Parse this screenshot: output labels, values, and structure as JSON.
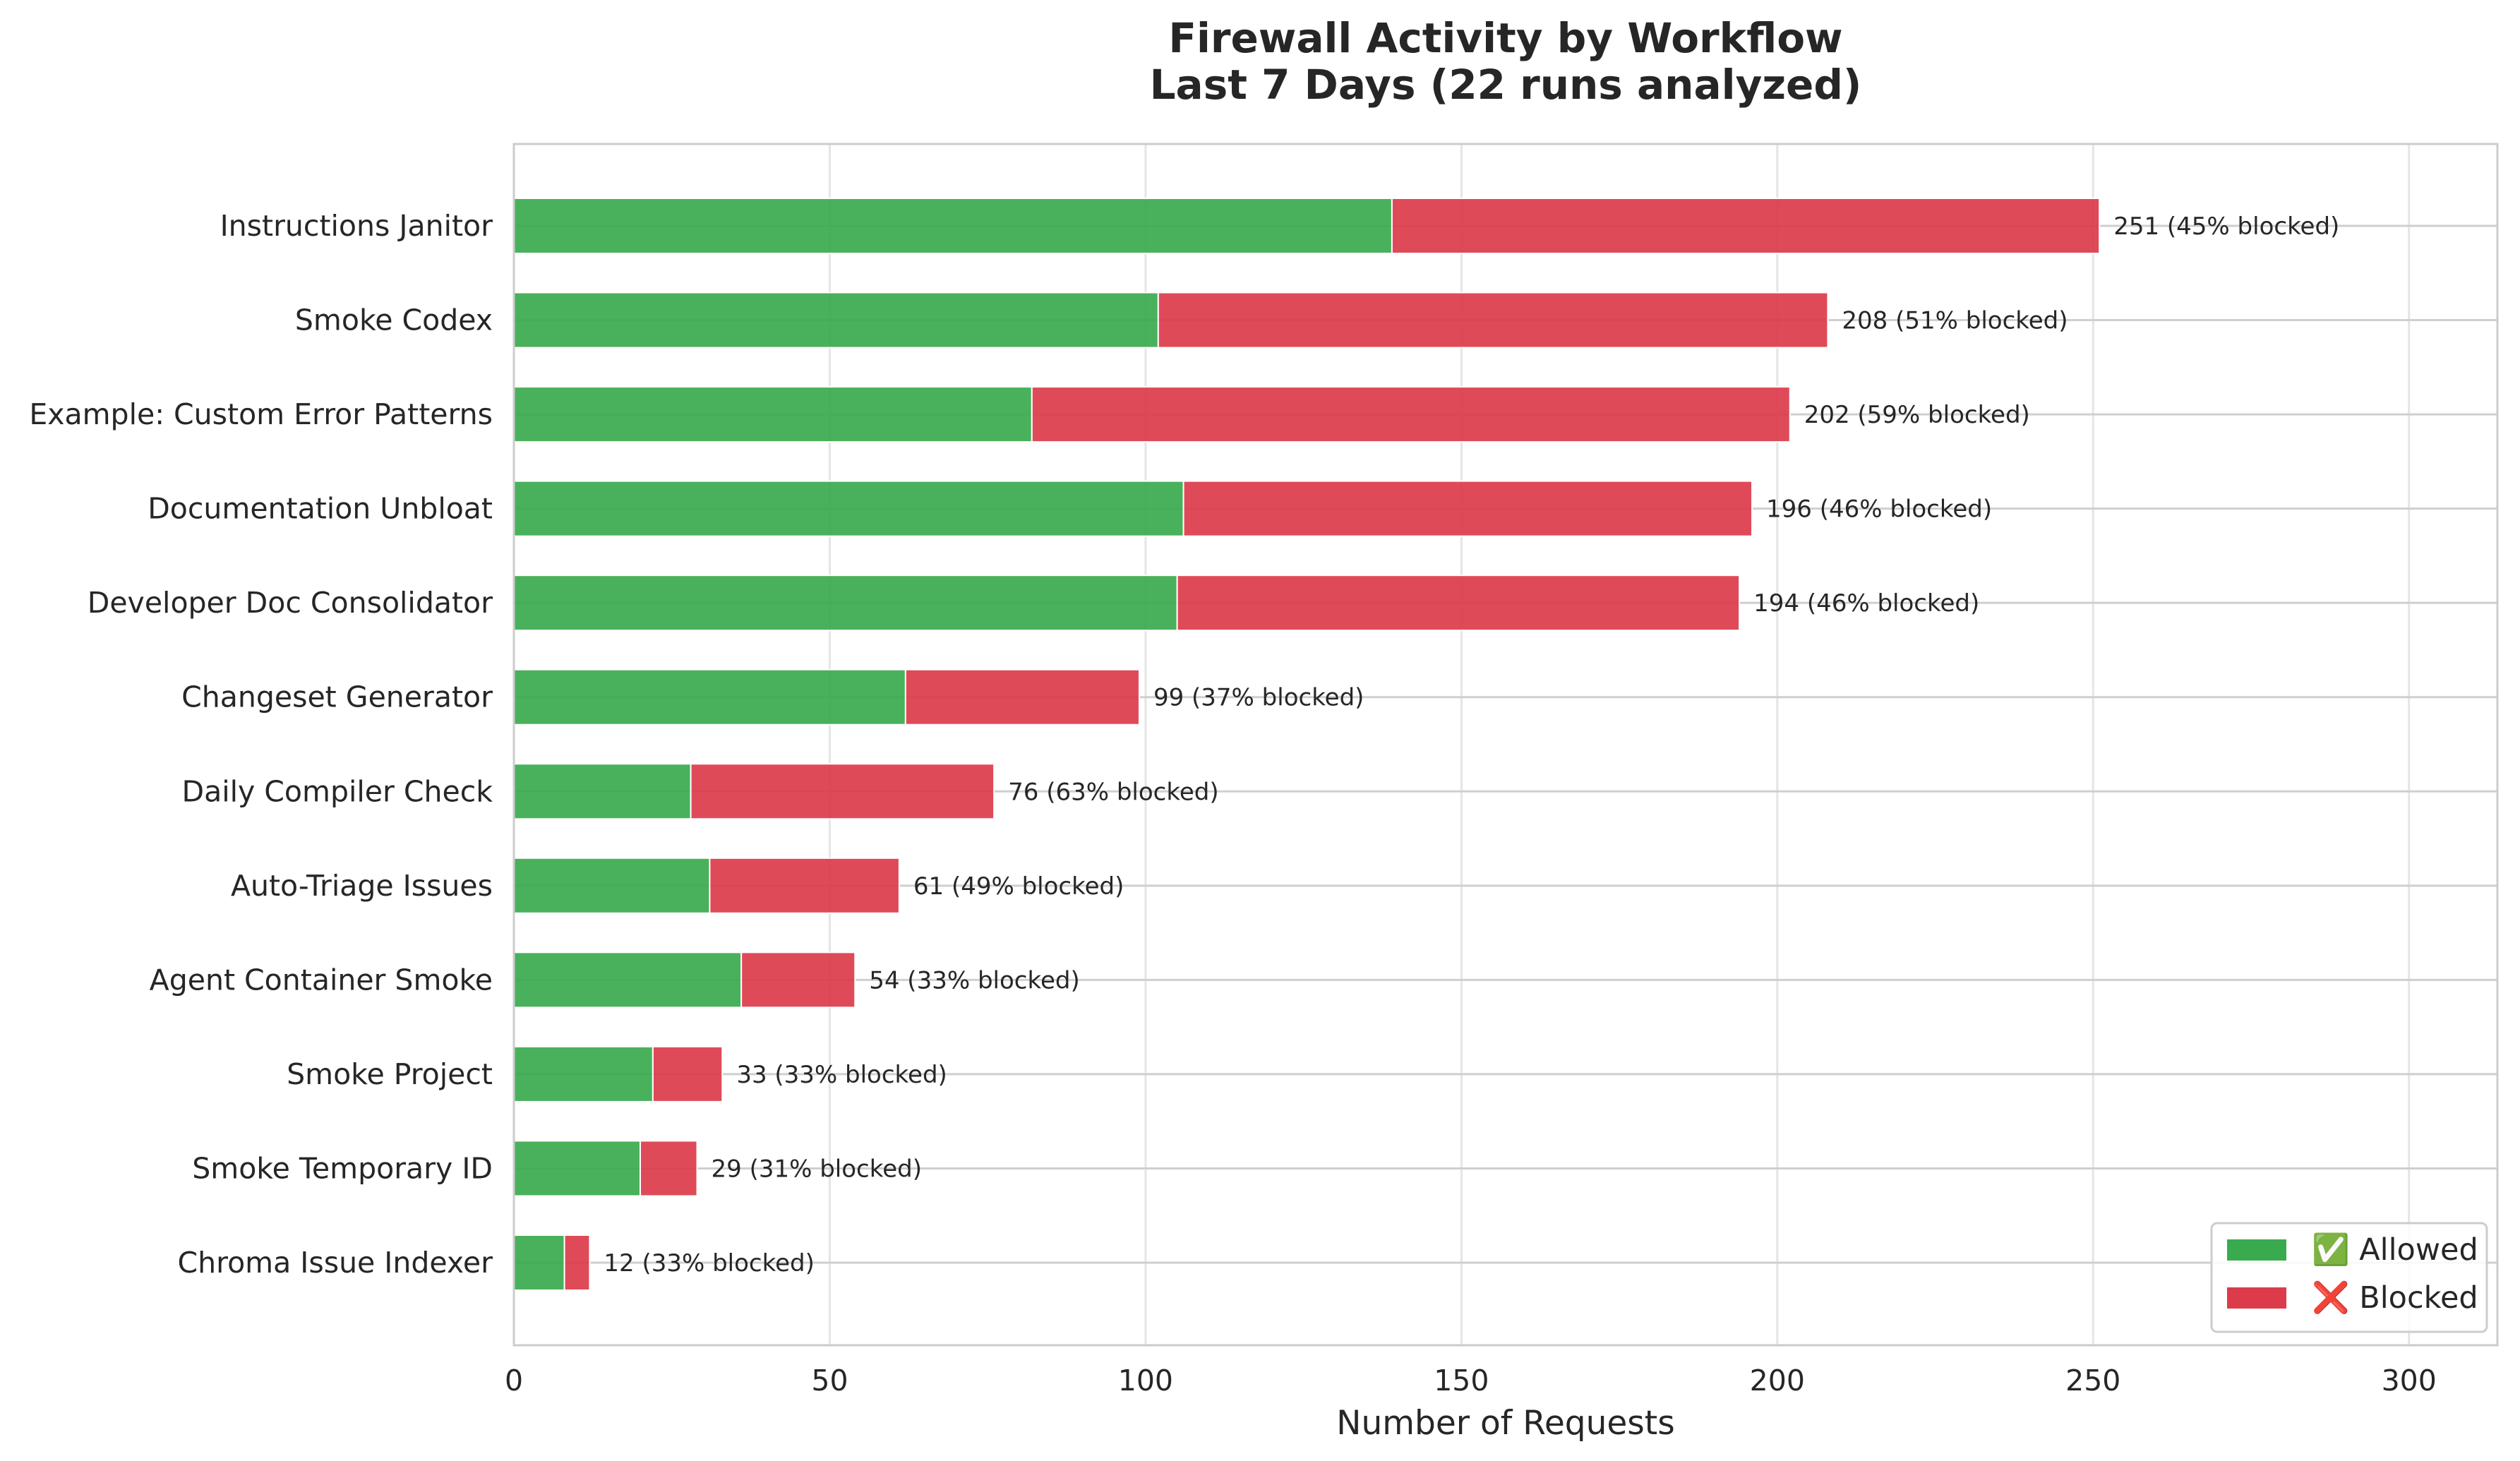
{
  "chart_data": {
    "type": "bar",
    "orientation": "horizontal",
    "stacked": true,
    "title": "Firewall Activity by Workflow",
    "subtitle": "Last 7 Days (22 runs analyzed)",
    "xlabel": "Number of Requests",
    "ylabel": "",
    "xlim": [
      0,
      314
    ],
    "xticks": [
      0,
      50,
      100,
      150,
      200,
      250,
      300
    ],
    "grid": true,
    "legend_position": "bottom-right",
    "categories": [
      "Instructions Janitor",
      "Smoke Codex",
      "Example: Custom Error Patterns",
      "Documentation Unbloat",
      "Developer Doc Consolidator",
      "Changeset Generator",
      "Daily Compiler Check",
      "Auto-Triage Issues",
      "Agent Container Smoke",
      "Smoke Project",
      "Smoke Temporary ID",
      "Chroma Issue Indexer"
    ],
    "series": [
      {
        "name": "✅ Allowed",
        "color": "#3aaa4e",
        "values": [
          139,
          102,
          82,
          106,
          105,
          62,
          28,
          31,
          36,
          22,
          20,
          8
        ]
      },
      {
        "name": "❌ Blocked",
        "color": "#dc3b4b",
        "values": [
          112,
          106,
          120,
          90,
          89,
          37,
          48,
          30,
          18,
          11,
          9,
          4
        ]
      }
    ],
    "data_labels": [
      "251 (45% blocked)",
      "208 (51% blocked)",
      "202 (59% blocked)",
      "196 (46% blocked)",
      "194 (46% blocked)",
      "99 (37% blocked)",
      "76 (63% blocked)",
      "61 (49% blocked)",
      "54 (33% blocked)",
      "33 (33% blocked)",
      "29 (31% blocked)",
      "12 (33% blocked)"
    ]
  }
}
